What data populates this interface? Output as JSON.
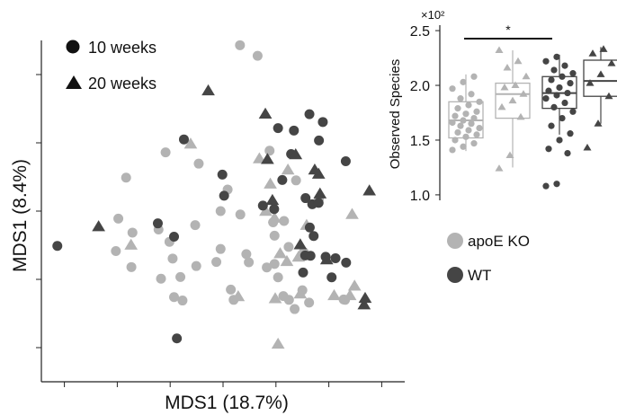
{
  "colors": {
    "apoe_ko": "#b3b3b3",
    "wt": "#454545",
    "axis": "#222222",
    "box_fill": "#ffffff"
  },
  "legend": {
    "shape": [
      {
        "label": "10 weeks",
        "shape": "circle"
      },
      {
        "label": "20 weeks",
        "shape": "triangle"
      }
    ],
    "color": [
      {
        "label": "apoE KO",
        "color": "#b3b3b3"
      },
      {
        "label": "WT",
        "color": "#454545"
      }
    ]
  },
  "chart_data": [
    {
      "type": "scatter",
      "title": "",
      "xlabel": "MDS1 (18.7%)",
      "ylabel": "MDS1 (8.4%)",
      "xlim": [
        0,
        1
      ],
      "ylim": [
        0,
        1
      ],
      "xticks": [
        0.05,
        0.2,
        0.35,
        0.5,
        0.65,
        0.8,
        0.95
      ],
      "yticks": [
        0.1,
        0.3,
        0.5,
        0.7,
        0.9
      ],
      "series": [
        {
          "name": "apoE KO",
          "shape": "circle",
          "color": "#b3b3b3",
          "x": [
            0.548,
            0.598,
            0.632,
            0.707,
            0.772,
            0.225,
            0.337,
            0.431,
            0.203,
            0.243,
            0.317,
            0.348,
            0.421,
            0.493,
            0.513,
            0.549,
            0.642,
            0.673,
            0.646,
            0.196,
            0.24,
            0.357,
            0.493,
            0.566,
            0.646,
            0.686,
            0.729,
            0.324,
            0.379,
            0.424,
            0.481,
            0.573,
            0.624,
            0.671,
            0.725,
            0.361,
            0.385,
            0.522,
            0.656,
            0.703,
            0.744,
            0.842,
            0.53,
            0.846,
            0.687
          ],
          "y": [
            0.986,
            0.955,
            0.677,
            0.59,
            0.536,
            0.598,
            0.672,
            0.639,
            0.478,
            0.437,
            0.446,
            0.41,
            0.459,
            0.5,
            0.563,
            0.49,
            0.467,
            0.471,
            0.428,
            0.383,
            0.336,
            0.361,
            0.389,
            0.374,
            0.345,
            0.395,
            0.38,
            0.302,
            0.307,
            0.339,
            0.351,
            0.35,
            0.335,
            0.251,
            0.268,
            0.248,
            0.238,
            0.27,
            0.306,
            0.213,
            0.232,
            0.241,
            0.24,
            0.24,
            0.24
          ]
        },
        {
          "name": "apoE KO",
          "shape": "triangle",
          "color": "#b3b3b3",
          "x": [
            0.408,
            0.603,
            0.634,
            0.621,
            0.646,
            0.662,
            0.684,
            0.681,
            0.714,
            0.737,
            0.866,
            0.239,
            0.656,
            0.719,
            0.815,
            0.86,
            0.543,
            0.648,
            0.873
          ],
          "y": [
            0.696,
            0.653,
            0.579,
            0.499,
            0.479,
            0.375,
            0.62,
            0.352,
            0.365,
            0.458,
            0.49,
            0.4,
            0.11,
            0.257,
            0.252,
            0.252,
            0.249,
            0.243,
            0.28
          ]
        },
        {
          "name": "WT",
          "shape": "circle",
          "color": "#454545",
          "x": [
            0.656,
            0.745,
            0.783,
            0.701,
            0.772,
            0.693,
            0.848,
            0.668,
            0.734,
            0.753,
            0.498,
            0.389,
            0.503,
            0.613,
            0.645,
            0.746,
            0.757,
            0.771,
            0.315,
            0.361,
            0.733,
            0.748,
            0.791,
            0.819,
            0.849,
            0.727,
            0.808,
            0.369
          ],
          "y": [
            0.743,
            0.784,
            0.761,
            0.736,
            0.707,
            0.667,
            0.646,
            0.591,
            0.538,
            0.52,
            0.607,
            0.71,
            0.545,
            0.516,
            0.506,
            0.452,
            0.427,
            0.524,
            0.464,
            0.425,
            0.37,
            0.369,
            0.366,
            0.362,
            0.349,
            0.32,
            0.306,
            0.127
          ]
        },
        {
          "name": "WT",
          "shape": "triangle",
          "color": "#454545",
          "x": [
            0.458,
            0.62,
            0.626,
            0.771,
            0.775,
            0.706,
            0.76,
            0.915,
            0.64,
            0.719,
            0.794,
            0.9,
            0.903,
            0.147
          ],
          "y": [
            0.852,
            0.784,
            0.651,
            0.608,
            0.55,
            0.665,
            0.62,
            0.559,
            0.531,
            0.401,
            0.357,
            0.225,
            0.244,
            0.454
          ]
        }
      ],
      "extra_points": [
        {
          "series": "WT",
          "shape": "circle",
          "x": 0.03,
          "y": 0.398
        }
      ]
    },
    {
      "type": "box",
      "title": "",
      "xlabel": "",
      "ylabel": "Observed Species",
      "axis_multiplier": "×10²",
      "ylim": [
        0.95,
        2.55
      ],
      "yticks": [
        1.0,
        1.5,
        2.0,
        2.5
      ],
      "significance": {
        "from": 0,
        "to": 2,
        "label": "*"
      },
      "groups": [
        {
          "name": "apoE KO",
          "shape": "circle",
          "color": "#b3b3b3",
          "q1": 1.52,
          "median": 1.68,
          "q3": 1.85,
          "whisker_low": 1.4,
          "whisker_high": 2.1,
          "points": [
            1.41,
            1.44,
            1.47,
            1.5,
            1.53,
            1.55,
            1.57,
            1.59,
            1.61,
            1.63,
            1.65,
            1.66,
            1.68,
            1.7,
            1.72,
            1.74,
            1.76,
            1.79,
            1.82,
            1.85,
            1.88,
            1.92,
            1.97,
            2.03,
            2.08
          ]
        },
        {
          "name": "apoE KO",
          "shape": "triangle",
          "color": "#b3b3b3",
          "q1": 1.7,
          "median": 1.92,
          "q3": 2.02,
          "whisker_low": 1.25,
          "whisker_high": 2.32,
          "points": [
            1.24,
            1.36,
            1.71,
            1.8,
            1.86,
            1.92,
            1.98,
            2.0,
            2.08,
            2.16,
            2.22,
            2.32
          ]
        },
        {
          "name": "WT",
          "shape": "circle",
          "color": "#454545",
          "q1": 1.79,
          "median": 1.93,
          "q3": 2.08,
          "whisker_low": 1.55,
          "whisker_high": 2.28,
          "points": [
            1.08,
            1.1,
            1.38,
            1.42,
            1.5,
            1.56,
            1.63,
            1.7,
            1.76,
            1.8,
            1.84,
            1.88,
            1.91,
            1.93,
            1.95,
            1.98,
            2.02,
            2.05,
            2.08,
            2.11,
            2.14,
            2.18,
            2.22,
            2.26
          ]
        },
        {
          "name": "WT",
          "shape": "triangle",
          "color": "#454545",
          "q1": 1.9,
          "median": 2.04,
          "q3": 2.23,
          "whisker_low": 1.65,
          "whisker_high": 2.35,
          "points": [
            1.43,
            1.65,
            1.9,
            2.02,
            2.1,
            2.2,
            2.29,
            2.33
          ]
        }
      ]
    }
  ]
}
